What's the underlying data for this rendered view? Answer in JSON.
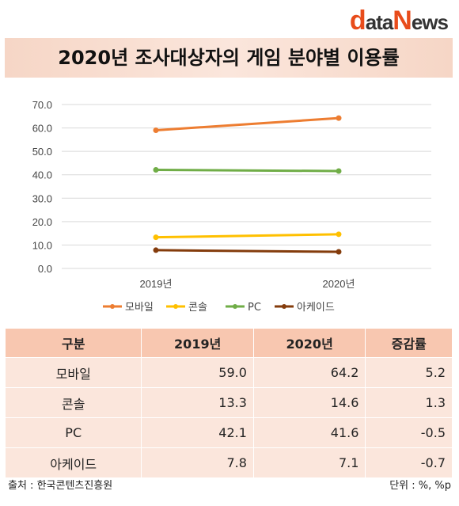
{
  "logo": {
    "text_d": "d",
    "text_a": "ata",
    "text_n": "N",
    "text_e": "ews"
  },
  "title": "2020년 조사대상자의 게임 분야별 이용률",
  "chart_data": {
    "type": "line",
    "categories": [
      "2019년",
      "2020년"
    ],
    "ylim": [
      0,
      70
    ],
    "yticks": [
      "0.0",
      "10.0",
      "20.0",
      "30.0",
      "40.0",
      "50.0",
      "60.0",
      "70.0"
    ],
    "grid": true,
    "legend_position": "bottom",
    "series": [
      {
        "name": "모바일",
        "values": [
          59.0,
          64.2
        ],
        "color": "#ed7d31"
      },
      {
        "name": "콘솔",
        "values": [
          13.3,
          14.6
        ],
        "color": "#ffc000"
      },
      {
        "name": "PC",
        "values": [
          42.1,
          41.6
        ],
        "color": "#70ad47"
      },
      {
        "name": "아케이드",
        "values": [
          7.8,
          7.1
        ],
        "color": "#843c0c"
      }
    ]
  },
  "table": {
    "headers": [
      "구분",
      "2019년",
      "2020년",
      "증감률"
    ],
    "rows": [
      [
        "모바일",
        "59.0",
        "64.2",
        "5.2"
      ],
      [
        "콘솔",
        "13.3",
        "14.6",
        "1.3"
      ],
      [
        "PC",
        "42.1",
        "41.6",
        "-0.5"
      ],
      [
        "아케이드",
        "7.8",
        "7.1",
        "-0.7"
      ]
    ]
  },
  "footer": {
    "source": "출처 : 한국콘텐츠진흥원",
    "unit": "단위 : %, %p"
  }
}
